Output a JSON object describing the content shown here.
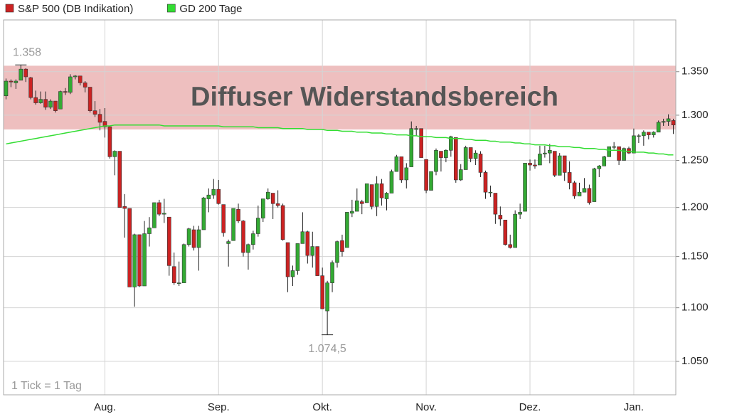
{
  "chart_data": {
    "type": "candlestick",
    "log": true,
    "grid": true,
    "ylim": [
      1020,
      1412
    ],
    "yticks": [
      {
        "value": 1050,
        "label": "1.050"
      },
      {
        "value": 1100,
        "label": "1.100"
      },
      {
        "value": 1150,
        "label": "1.150"
      },
      {
        "value": 1200,
        "label": "1.200"
      },
      {
        "value": 1250,
        "label": "1.250"
      },
      {
        "value": 1300,
        "label": "1.300"
      },
      {
        "value": 1350,
        "label": "1.350"
      }
    ],
    "band": {
      "label": "Diffuser Widerstandsbereich",
      "range": [
        1284,
        1357
      ],
      "color": "#e8a9a9"
    },
    "annotations": {
      "high": "1.358",
      "low": "1.074,5",
      "note": "1 Tick = 1 Tag"
    },
    "categories": [
      null,
      null,
      null,
      null,
      null,
      null,
      null,
      null,
      null,
      null,
      null,
      null,
      null,
      null,
      null,
      null,
      null,
      null,
      null,
      null,
      "Aug.",
      null,
      null,
      null,
      null,
      null,
      null,
      null,
      null,
      null,
      null,
      null,
      null,
      null,
      null,
      null,
      null,
      null,
      null,
      null,
      null,
      null,
      null,
      "Sep.",
      null,
      null,
      null,
      null,
      null,
      null,
      null,
      null,
      null,
      null,
      null,
      null,
      null,
      null,
      null,
      null,
      null,
      null,
      null,
      null,
      "Okt.",
      null,
      null,
      null,
      null,
      null,
      null,
      null,
      null,
      null,
      null,
      null,
      null,
      null,
      null,
      null,
      null,
      null,
      null,
      null,
      null,
      "Nov.",
      null,
      null,
      null,
      null,
      null,
      null,
      null,
      null,
      null,
      null,
      null,
      null,
      null,
      null,
      null,
      null,
      null,
      null,
      null,
      null,
      "Dez.",
      null,
      null,
      null,
      null,
      null,
      null,
      null,
      null,
      null,
      null,
      null,
      null,
      null,
      null,
      null,
      null,
      null,
      null,
      null,
      null,
      "Jan.",
      null,
      null,
      null,
      null,
      null,
      null,
      null,
      null
    ],
    "series": [
      {
        "name": "S&P 500 (DB Indikation)",
        "color": "#cc2222",
        "up_color": "#33aa33",
        "down_color": "#cc2222",
        "values": [
          [
            1322,
            1342,
            1318,
            1339
          ],
          [
            1339,
            1341,
            1332,
            1338
          ],
          [
            1337,
            1341,
            1330,
            1339
          ],
          [
            1340,
            1358,
            1340,
            1353
          ],
          [
            1353,
            1354,
            1338,
            1344
          ],
          [
            1343,
            1344,
            1318,
            1320
          ],
          [
            1320,
            1328,
            1312,
            1314
          ],
          [
            1314,
            1327,
            1313,
            1318
          ],
          [
            1318,
            1327,
            1306,
            1309
          ],
          [
            1309,
            1318,
            1307,
            1316
          ],
          [
            1316,
            1316,
            1303,
            1305
          ],
          [
            1307,
            1328,
            1307,
            1327
          ],
          [
            1327,
            1331,
            1323,
            1326
          ],
          [
            1326,
            1347,
            1324,
            1344
          ],
          [
            1344,
            1346,
            1341,
            1345
          ],
          [
            1345,
            1345,
            1334,
            1337
          ],
          [
            1337,
            1339,
            1326,
            1332
          ],
          [
            1332,
            1332,
            1303,
            1305
          ],
          [
            1305,
            1316,
            1298,
            1301
          ],
          [
            1301,
            1307,
            1283,
            1292
          ],
          [
            1293,
            1308,
            1275,
            1287
          ],
          [
            1287,
            1288,
            1252,
            1254
          ],
          [
            1254,
            1261,
            1234,
            1260
          ],
          [
            1260,
            1260,
            1200,
            1200
          ],
          [
            1201,
            1214,
            1169,
            1199
          ],
          [
            1199,
            1199,
            1120,
            1120
          ],
          [
            1120,
            1173,
            1101,
            1172
          ],
          [
            1172,
            1172,
            1120,
            1121
          ],
          [
            1121,
            1186,
            1121,
            1173
          ],
          [
            1173,
            1190,
            1160,
            1179
          ],
          [
            1179,
            1205,
            1179,
            1205
          ],
          [
            1205,
            1208,
            1191,
            1193
          ],
          [
            1193,
            1209,
            1184,
            1194
          ],
          [
            1190,
            1190,
            1131,
            1141
          ],
          [
            1140,
            1154,
            1122,
            1124
          ],
          [
            1124,
            1145,
            1121,
            1124
          ],
          [
            1124,
            1163,
            1124,
            1162
          ],
          [
            1162,
            1179,
            1160,
            1178
          ],
          [
            1177,
            1181,
            1156,
            1159
          ],
          [
            1159,
            1181,
            1136,
            1177
          ],
          [
            1177,
            1211,
            1177,
            1210
          ],
          [
            1209,
            1220,
            1195,
            1213
          ],
          [
            1213,
            1230,
            1209,
            1219
          ],
          [
            1219,
            1229,
            1203,
            1204
          ],
          [
            1203,
            1203,
            1170,
            1174
          ],
          [
            1163,
            1167,
            1140,
            1165
          ],
          [
            1166,
            1199,
            1166,
            1199
          ],
          [
            1198,
            1204,
            1184,
            1186
          ],
          [
            1186,
            1187,
            1150,
            1154
          ],
          [
            1154,
            1163,
            1137,
            1162
          ],
          [
            1162,
            1176,
            1157,
            1173
          ],
          [
            1173,
            1202,
            1170,
            1189
          ],
          [
            1189,
            1209,
            1185,
            1209
          ],
          [
            1209,
            1220,
            1208,
            1216
          ],
          [
            1215,
            1215,
            1188,
            1204
          ],
          [
            1204,
            1218,
            1200,
            1202
          ],
          [
            1202,
            1204,
            1166,
            1167
          ],
          [
            1164,
            1164,
            1115,
            1130
          ],
          [
            1130,
            1141,
            1121,
            1136
          ],
          [
            1136,
            1163,
            1132,
            1163
          ],
          [
            1163,
            1195,
            1163,
            1175
          ],
          [
            1175,
            1176,
            1143,
            1151
          ],
          [
            1151,
            1175,
            1139,
            1160
          ],
          [
            1160,
            1160,
            1131,
            1131
          ],
          [
            1131,
            1139,
            1099,
            1099
          ],
          [
            1097,
            1126,
            1074.5,
            1124
          ],
          [
            1124,
            1146,
            1115,
            1144
          ],
          [
            1144,
            1166,
            1139,
            1165
          ],
          [
            1166,
            1172,
            1150,
            1155
          ],
          [
            1159,
            1195,
            1159,
            1195
          ],
          [
            1194,
            1208,
            1190,
            1196
          ],
          [
            1196,
            1220,
            1196,
            1207
          ],
          [
            1206,
            1208,
            1193,
            1204
          ],
          [
            1205,
            1225,
            1205,
            1225
          ],
          [
            1224,
            1224,
            1198,
            1201
          ],
          [
            1201,
            1233,
            1191,
            1225
          ],
          [
            1225,
            1230,
            1202,
            1210
          ],
          [
            1209,
            1216,
            1197,
            1215
          ],
          [
            1215,
            1240,
            1215,
            1238
          ],
          [
            1238,
            1256,
            1238,
            1254
          ],
          [
            1254,
            1254,
            1226,
            1229
          ],
          [
            1229,
            1247,
            1220,
            1242
          ],
          [
            1243,
            1293,
            1243,
            1285
          ],
          [
            1284,
            1288,
            1277,
            1285
          ],
          [
            1285,
            1285,
            1253,
            1253
          ],
          [
            1251,
            1251,
            1215,
            1218
          ],
          [
            1218,
            1238,
            1218,
            1238
          ],
          [
            1238,
            1263,
            1234,
            1261
          ],
          [
            1260,
            1260,
            1238,
            1253
          ],
          [
            1253,
            1262,
            1248,
            1261
          ],
          [
            1261,
            1277,
            1254,
            1276
          ],
          [
            1275,
            1275,
            1226,
            1229
          ],
          [
            1229,
            1246,
            1228,
            1240
          ],
          [
            1240,
            1266,
            1240,
            1264
          ],
          [
            1264,
            1264,
            1248,
            1252
          ],
          [
            1252,
            1261,
            1245,
            1258
          ],
          [
            1257,
            1260,
            1232,
            1237
          ],
          [
            1237,
            1239,
            1209,
            1216
          ],
          [
            1216,
            1223,
            1211,
            1216
          ],
          [
            1215,
            1215,
            1183,
            1193
          ],
          [
            1192,
            1201,
            1181,
            1188
          ],
          [
            1187,
            1187,
            1161,
            1162
          ],
          [
            1162,
            1172,
            1158,
            1159
          ],
          [
            1159,
            1197,
            1159,
            1193
          ],
          [
            1193,
            1204,
            1188,
            1195
          ],
          [
            1196,
            1247,
            1196,
            1247
          ],
          [
            1247,
            1251,
            1239,
            1245
          ],
          [
            1245,
            1251,
            1241,
            1244
          ],
          [
            1245,
            1266,
            1245,
            1257
          ],
          [
            1257,
            1266,
            1253,
            1258
          ],
          [
            1258,
            1268,
            1247,
            1261
          ],
          [
            1260,
            1260,
            1232,
            1234
          ],
          [
            1234,
            1258,
            1234,
            1255
          ],
          [
            1255,
            1255,
            1228,
            1237
          ],
          [
            1237,
            1249,
            1219,
            1226
          ],
          [
            1226,
            1228,
            1209,
            1212
          ],
          [
            1212,
            1226,
            1212,
            1216
          ],
          [
            1216,
            1231,
            1216,
            1220
          ],
          [
            1220,
            1224,
            1203,
            1205
          ],
          [
            1206,
            1242,
            1206,
            1241
          ],
          [
            1241,
            1245,
            1232,
            1244
          ],
          [
            1244,
            1255,
            1244,
            1254
          ],
          [
            1254,
            1265,
            1254,
            1265
          ],
          [
            1265,
            1270,
            1262,
            1265
          ],
          [
            1265,
            1265,
            1245,
            1250
          ],
          [
            1250,
            1264,
            1250,
            1263
          ],
          [
            1263,
            1265,
            1257,
            1258
          ],
          [
            1258,
            1285,
            1258,
            1277
          ],
          [
            1277,
            1279,
            1269,
            1277
          ],
          [
            1277,
            1283,
            1266,
            1281
          ],
          [
            1281,
            1281,
            1273,
            1278
          ],
          [
            1278,
            1282,
            1275,
            1281
          ],
          [
            1281,
            1294,
            1281,
            1292
          ],
          [
            1292,
            1296,
            1288,
            1293
          ],
          [
            1293,
            1301,
            1288,
            1296
          ],
          [
            1294,
            1296,
            1279,
            1289
          ]
        ]
      },
      {
        "name": "GD 200 Tage",
        "type": "line",
        "color": "#33dd33",
        "values": [
          1268,
          1269,
          1270,
          1271,
          1272,
          1273,
          1274,
          1275,
          1276,
          1277,
          1278,
          1279,
          1280,
          1281,
          1282,
          1283,
          1284,
          1285,
          1286,
          1287,
          1288,
          1288,
          1289,
          1289,
          1289,
          1289,
          1289,
          1289,
          1289,
          1289,
          1289,
          1289,
          1288,
          1288,
          1288,
          1288,
          1288,
          1288,
          1288,
          1288,
          1288,
          1288,
          1288,
          1288,
          1287,
          1287,
          1287,
          1287,
          1287,
          1287,
          1287,
          1286,
          1286,
          1286,
          1286,
          1286,
          1285,
          1285,
          1285,
          1285,
          1285,
          1284,
          1284,
          1284,
          1284,
          1283,
          1283,
          1283,
          1282,
          1282,
          1282,
          1281,
          1281,
          1281,
          1280,
          1280,
          1280,
          1279,
          1279,
          1278,
          1278,
          1278,
          1277,
          1277,
          1276,
          1276,
          1276,
          1275,
          1275,
          1275,
          1274,
          1274,
          1274,
          1273,
          1273,
          1272,
          1272,
          1272,
          1271,
          1271,
          1270,
          1270,
          1270,
          1269,
          1269,
          1268,
          1268,
          1267,
          1267,
          1267,
          1266,
          1266,
          1265,
          1265,
          1265,
          1264,
          1264,
          1263,
          1263,
          1263,
          1262,
          1262,
          1261,
          1261,
          1261,
          1260,
          1260,
          1259,
          1259,
          1259,
          1258,
          1258,
          1257,
          1257,
          1256,
          1256
        ]
      }
    ]
  }
}
